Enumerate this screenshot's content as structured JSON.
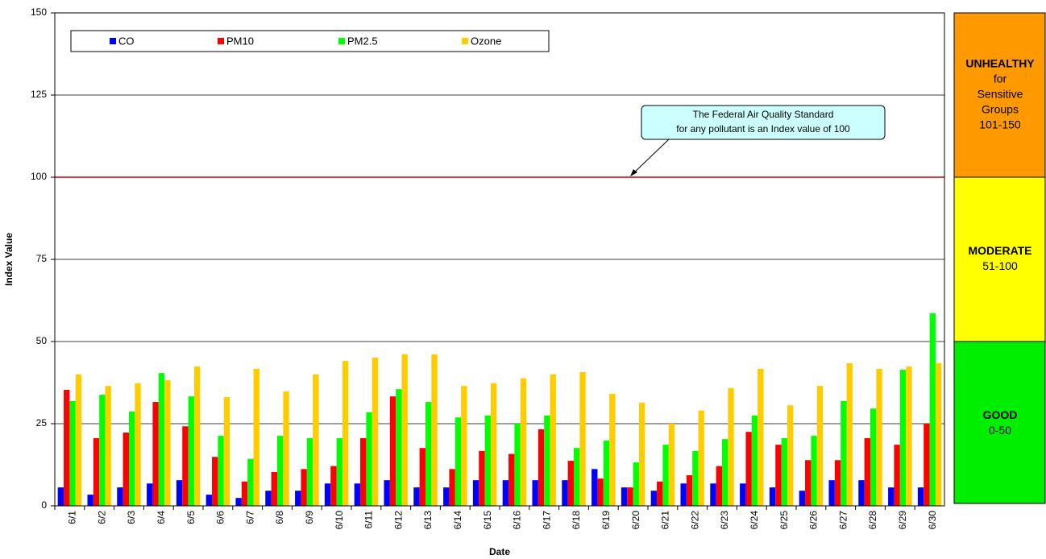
{
  "chart_data": {
    "type": "bar",
    "x_label": "Date",
    "y_label": "Index Value",
    "categories": [
      "6/1",
      "6/2",
      "6/3",
      "6/4",
      "6/5",
      "6/6",
      "6/7",
      "6/8",
      "6/9",
      "6/10",
      "6/11",
      "6/12",
      "6/13",
      "6/14",
      "6/15",
      "6/16",
      "6/17",
      "6/18",
      "6/19",
      "6/20",
      "6/21",
      "6/22",
      "6/23",
      "6/24",
      "6/25",
      "6/26",
      "6/27",
      "6/28",
      "6/29",
      "6/30"
    ],
    "series": [
      {
        "name": "CO",
        "color": "#0000ff",
        "values": [
          5.6,
          3.4,
          5.6,
          6.8,
          7.8,
          3.4,
          2.4,
          4.6,
          4.6,
          6.8,
          6.8,
          7.8,
          5.6,
          5.6,
          7.8,
          7.8,
          7.8,
          7.8,
          11.2,
          5.6,
          4.6,
          6.8,
          6.8,
          6.8,
          5.6,
          4.6,
          7.8,
          7.8,
          5.6,
          5.6
        ]
      },
      {
        "name": "PM10",
        "color": "#ff0000",
        "values": [
          35.3,
          20.6,
          22.3,
          31.6,
          24.2,
          14.9,
          7.4,
          10.3,
          11.2,
          12.1,
          20.6,
          33.3,
          17.6,
          11.2,
          16.7,
          15.8,
          23.3,
          13.7,
          8.3,
          5.6,
          7.4,
          9.3,
          12.1,
          22.5,
          18.6,
          13.9,
          13.9,
          20.6,
          18.6,
          25.0
        ]
      },
      {
        "name": "PM2.5",
        "color": "#00ff00",
        "values": [
          31.9,
          33.8,
          28.7,
          40.4,
          33.3,
          21.3,
          14.3,
          21.3,
          20.6,
          20.6,
          28.5,
          35.5,
          31.6,
          26.9,
          27.5,
          25.0,
          27.5,
          17.6,
          19.9,
          13.2,
          18.6,
          16.7,
          20.3,
          27.5,
          20.6,
          21.3,
          31.9,
          29.6,
          41.4,
          58.6
        ]
      },
      {
        "name": "Ozone",
        "color": "#ffcc00",
        "values": [
          40,
          36.5,
          37.3,
          38.2,
          42.4,
          33.1,
          41.7,
          34.8,
          40,
          44.1,
          45.1,
          46.1,
          46.1,
          36.5,
          37.3,
          38.8,
          40,
          40.7,
          34.1,
          31.4,
          25,
          29,
          35.8,
          41.7,
          30.6,
          36.5,
          43.4,
          41.7,
          42.4,
          43.4
        ]
      }
    ],
    "ylim": [
      0,
      150
    ],
    "yticks": [
      0,
      25,
      50,
      75,
      100,
      125,
      150
    ],
    "grid": true,
    "reference_line": {
      "value": 100,
      "color": "#c00000"
    },
    "annotation": [
      "The Federal Air Quality Standard",
      "for any pollutant is an Index value of 100"
    ],
    "aqi_bands": [
      {
        "lines": [
          "UNHEALTHY",
          "for",
          "Sensitive",
          "Groups",
          "101-150"
        ],
        "color": "#ff9900"
      },
      {
        "lines": [
          "MODERATE",
          "51-100"
        ],
        "color": "#ffff00"
      },
      {
        "lines": [
          "GOOD",
          "0-50"
        ],
        "color": "#00ee00"
      }
    ]
  }
}
